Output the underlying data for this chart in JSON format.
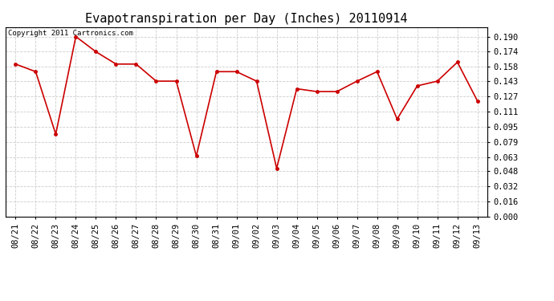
{
  "title": "Evapotranspiration per Day (Inches) 20110914",
  "copyright": "Copyright 2011 Cartronics.com",
  "x_labels": [
    "08/21",
    "08/22",
    "08/23",
    "08/24",
    "08/25",
    "08/26",
    "08/27",
    "08/28",
    "08/29",
    "08/30",
    "08/31",
    "09/01",
    "09/02",
    "09/03",
    "09/04",
    "09/05",
    "09/06",
    "09/07",
    "09/08",
    "09/09",
    "09/10",
    "09/11",
    "09/12",
    "09/13"
  ],
  "y_values": [
    0.161,
    0.153,
    0.087,
    0.19,
    0.174,
    0.161,
    0.161,
    0.143,
    0.143,
    0.064,
    0.153,
    0.153,
    0.143,
    0.051,
    0.135,
    0.132,
    0.132,
    0.143,
    0.153,
    0.103,
    0.138,
    0.143,
    0.163,
    0.122
  ],
  "y_ticks": [
    0.0,
    0.016,
    0.032,
    0.048,
    0.063,
    0.079,
    0.095,
    0.111,
    0.127,
    0.143,
    0.158,
    0.174,
    0.19
  ],
  "line_color": "#cc0000",
  "marker": "o",
  "marker_size": 2.5,
  "bg_color": "#ffffff",
  "plot_bg_color": "#ffffff",
  "grid_color": "#cccccc",
  "title_fontsize": 11,
  "copyright_fontsize": 6.5,
  "tick_fontsize": 7.5,
  "ylim_max": 0.2,
  "ylim_min": 0.0
}
